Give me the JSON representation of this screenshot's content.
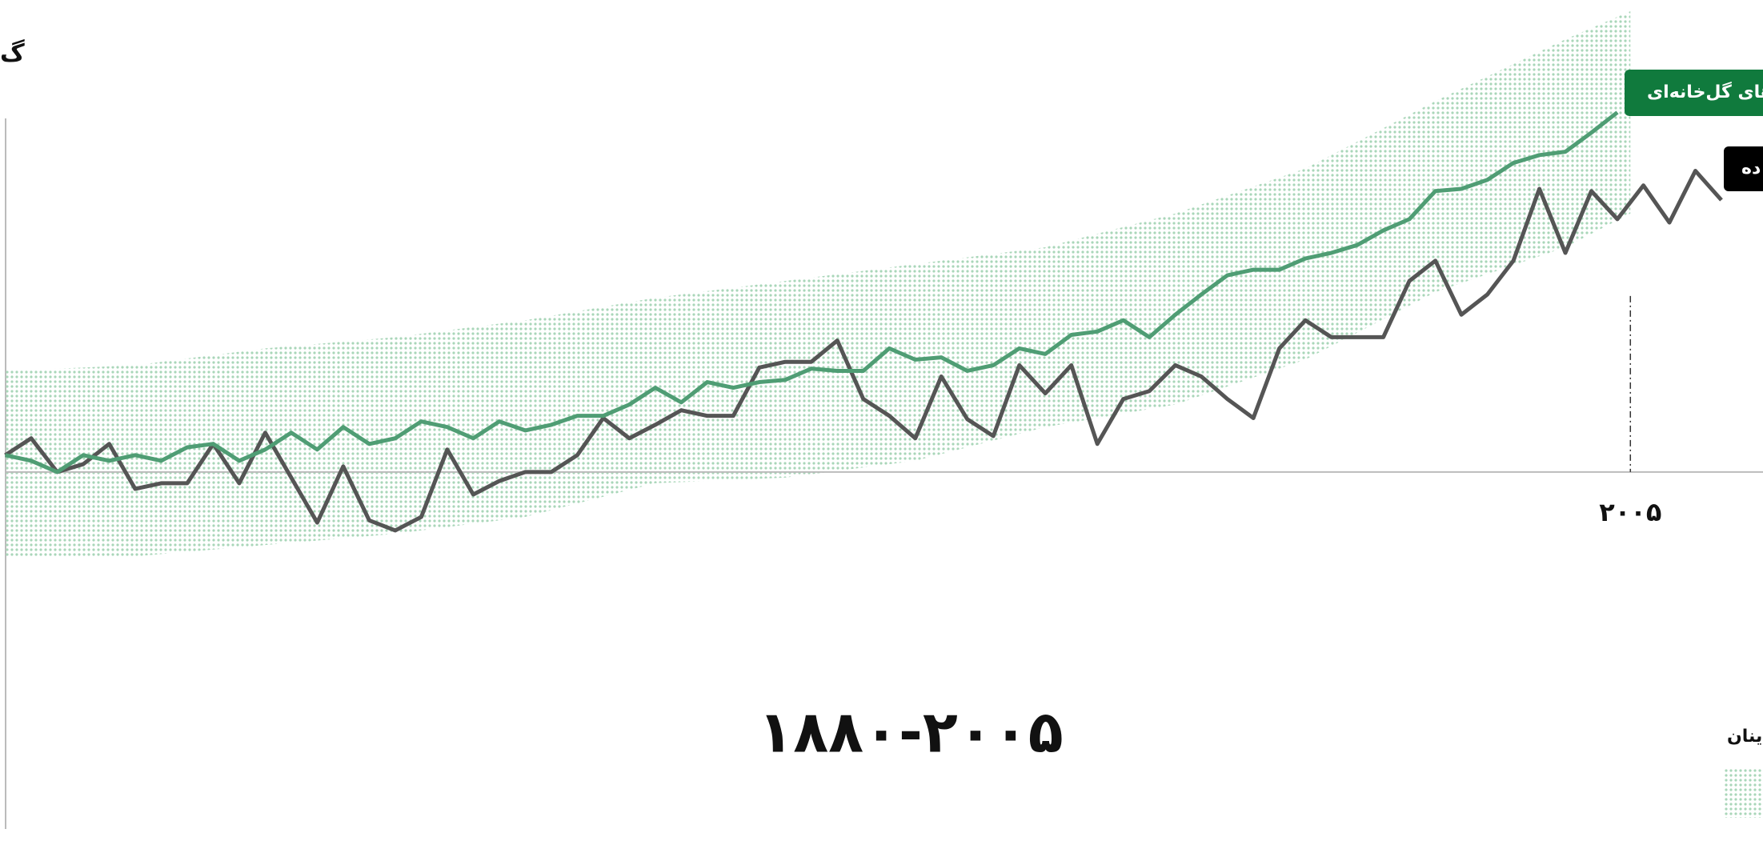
{
  "chart_data": {
    "type": "line",
    "heading": "گ",
    "title": "۱۸۸۰-۲۰۰۵",
    "x": [
      1880,
      1882,
      1884,
      1886,
      1888,
      1890,
      1892,
      1894,
      1896,
      1898,
      1900,
      1902,
      1904,
      1906,
      1908,
      1910,
      1912,
      1914,
      1916,
      1918,
      1920,
      1922,
      1924,
      1926,
      1928,
      1930,
      1932,
      1934,
      1936,
      1938,
      1940,
      1942,
      1944,
      1946,
      1948,
      1950,
      1952,
      1954,
      1956,
      1958,
      1960,
      1962,
      1964,
      1966,
      1968,
      1970,
      1972,
      1974,
      1976,
      1978,
      1980,
      1982,
      1984,
      1986,
      1988,
      1990,
      1992,
      1994,
      1996,
      1998,
      2000,
      2002,
      2004,
      2006,
      2008,
      2010,
      2012
    ],
    "series": [
      {
        "name": "ازهای گل‌خانه‌ای",
        "color": "#4f9d74",
        "values": [
          0.15,
          0.1,
          0,
          0.15,
          0.1,
          0.15,
          0.1,
          0.22,
          0.25,
          0.1,
          0.2,
          0.35,
          0.2,
          0.4,
          0.25,
          0.3,
          0.45,
          0.4,
          0.3,
          0.45,
          0.37,
          0.42,
          0.5,
          0.5,
          0.6,
          0.75,
          0.62,
          0.8,
          0.75,
          0.8,
          0.82,
          0.92,
          0.9,
          0.9,
          1.1,
          1.0,
          1.02,
          0.9,
          0.95,
          1.1,
          1.05,
          1.22,
          1.25,
          1.35,
          1.2,
          1.4,
          1.58,
          1.75,
          1.8,
          1.8,
          1.9,
          1.95,
          2.02,
          2.15,
          2.25,
          2.5,
          2.52,
          2.6,
          2.75,
          2.82,
          2.85,
          3.02,
          3.2,
          null,
          null,
          null,
          null
        ]
      },
      {
        "name": "ده",
        "color": "#555555",
        "values": [
          0.15,
          0.3,
          0,
          0.07,
          0.25,
          -0.15,
          -0.1,
          -0.1,
          0.25,
          -0.1,
          0.35,
          -0.05,
          -0.45,
          0.05,
          -0.43,
          -0.52,
          -0.4,
          0.2,
          -0.2,
          -0.08,
          0,
          0,
          0.15,
          0.48,
          0.3,
          0.42,
          0.55,
          0.5,
          0.5,
          0.93,
          0.98,
          0.98,
          1.17,
          0.65,
          0.5,
          0.3,
          0.85,
          0.47,
          0.32,
          0.95,
          0.7,
          0.95,
          0.25,
          0.65,
          0.72,
          0.95,
          0.85,
          0.65,
          0.48,
          1.1,
          1.35,
          1.2,
          1.2,
          1.2,
          1.7,
          1.88,
          1.4,
          1.58,
          1.88,
          2.52,
          1.95,
          2.5,
          2.25,
          2.55,
          2.22,
          2.68,
          2.42
        ]
      }
    ],
    "band": {
      "name": "ینان",
      "color": "#a9d6b9",
      "x": [
        1880,
        1890,
        1900,
        1910,
        1920,
        1930,
        1940,
        1950,
        1960,
        1970,
        1980,
        1990,
        2000,
        2005
      ],
      "upper": [
        0.9,
        0.95,
        1.1,
        1.2,
        1.35,
        1.55,
        1.7,
        1.85,
        2.0,
        2.3,
        2.7,
        3.3,
        3.85,
        4.1
      ],
      "lower": [
        -0.75,
        -0.75,
        -0.65,
        -0.55,
        -0.4,
        -0.1,
        -0.05,
        0.1,
        0.4,
        0.6,
        1.0,
        1.6,
        2.0,
        2.3
      ]
    },
    "xlim": [
      1879.6,
      2015.2
    ],
    "ylim": [
      -3.39,
      4.2
    ],
    "xticks": [
      {
        "value": 2005,
        "label": "۲۰۰۵"
      }
    ]
  }
}
